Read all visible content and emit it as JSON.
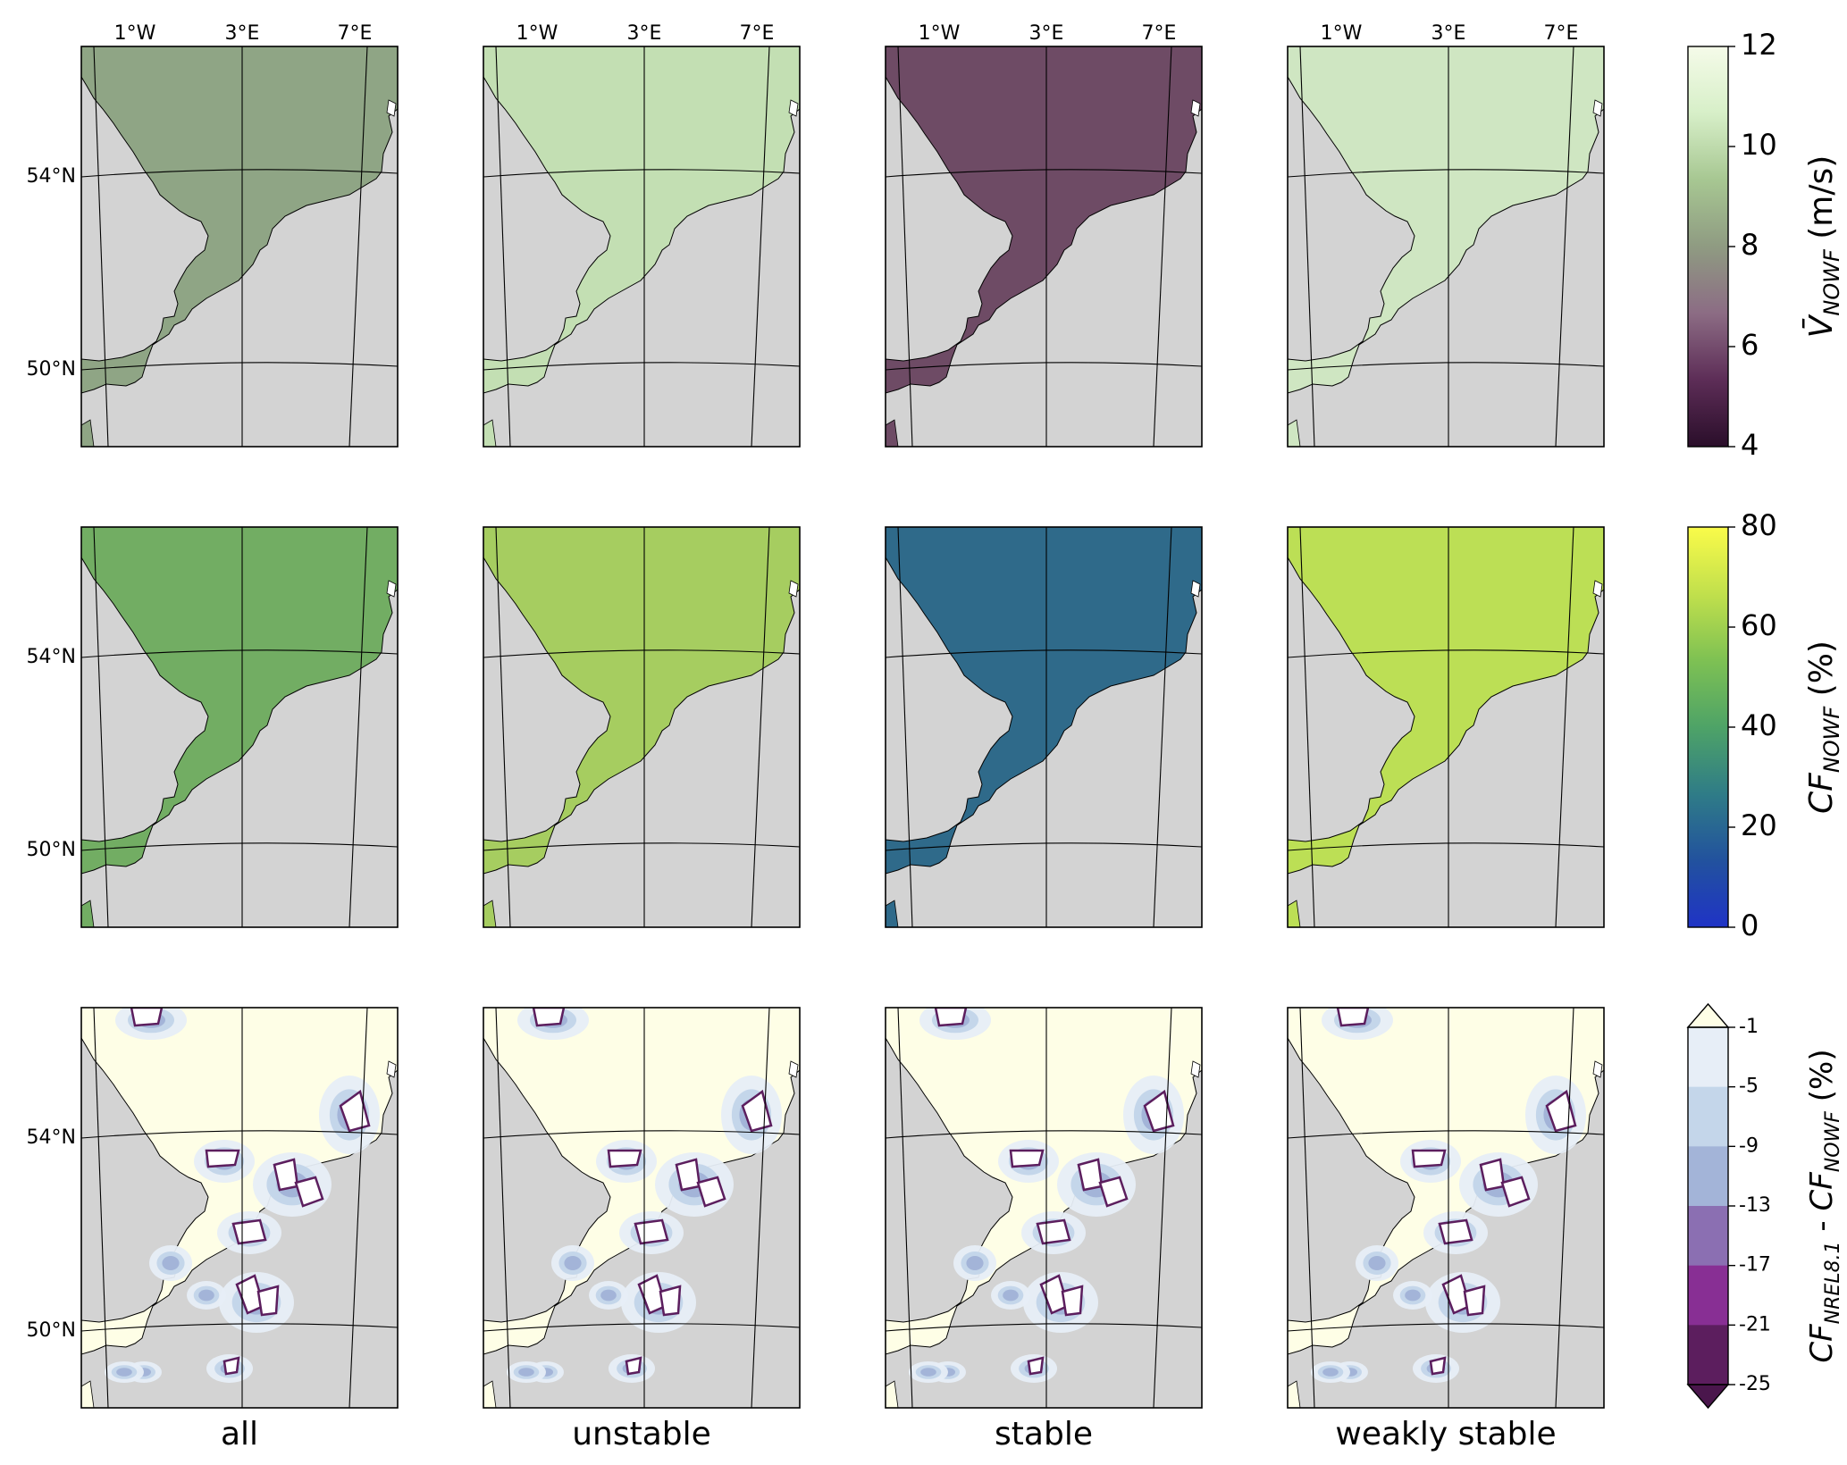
{
  "figure": {
    "columns": [
      {
        "label": "all",
        "lon_ticks": [
          "1°W",
          "3°E",
          "7°E"
        ]
      },
      {
        "label": "unstable",
        "lon_ticks": [
          "1°W",
          "3°E",
          "7°E"
        ]
      },
      {
        "label": "stable",
        "lon_ticks": [
          "1°W",
          "3°E",
          "7°E"
        ]
      },
      {
        "label": "weakly stable",
        "lon_ticks": [
          "1°W",
          "3°E",
          "7°E"
        ]
      }
    ],
    "rows": [
      {
        "lat_ticks": [
          "54°N",
          "50°N"
        ],
        "field": "wind_speed"
      },
      {
        "lat_ticks": [
          "54°N",
          "50°N"
        ],
        "field": "capacity_factor"
      },
      {
        "lat_ticks": [
          "54°N",
          "50°N"
        ],
        "field": "cf_difference"
      }
    ],
    "colors": {
      "land": "#d3d3d3",
      "frame": "#000000",
      "gridline": "#000000",
      "coast": "#000000"
    },
    "sea_fill": [
      [
        "#8fa585",
        "#c3dfb3",
        "#6e4b65",
        "#cfe6c2"
      ],
      [
        "#72ad63",
        "#a6cd60",
        "#2f6a8a",
        "#bcdf55"
      ],
      [
        "#fefee6",
        "#fefee6",
        "#fefee6",
        "#fefee6"
      ]
    ],
    "colorbars": [
      {
        "label": "V̄ NOWF (m/s)",
        "label_main": "V̄",
        "label_sub": "NOWF",
        "label_unit": " (m/s)",
        "ticks": [
          "12",
          "10",
          "8",
          "6",
          "4"
        ],
        "range": [
          4,
          12
        ],
        "colormap": "PRGn-like",
        "stops": [
          "#2a0e2a",
          "#5d2d57",
          "#8c6c84",
          "#8f9b82",
          "#a7c792",
          "#d7efc8",
          "#f5fbe9"
        ]
      },
      {
        "label": "CF NOWF (%)",
        "label_main": "CF",
        "label_sub": "NOWF",
        "label_unit": " (%)",
        "ticks": [
          "80",
          "60",
          "40",
          "20",
          "0"
        ],
        "range": [
          0,
          80
        ],
        "colormap": "viridis-like",
        "stops": [
          "#1f33c6",
          "#22529e",
          "#2f7c87",
          "#4ea367",
          "#7ec153",
          "#c1e04c",
          "#fafb4a"
        ]
      },
      {
        "label": "CF NREL8.1 - CF NOWF (%)",
        "label_main_a": "CF",
        "label_sub_a": "NREL8.1",
        "label_mid": " - ",
        "label_main_b": "CF",
        "label_sub_b": "NOWF",
        "label_unit": " (%)",
        "ticks": [
          "-1",
          "-5",
          "-9",
          "-13",
          "-17",
          "-21",
          "-25"
        ],
        "levels": [
          "#e7eef7",
          "#c4d6ea",
          "#a3b4d8",
          "#8b6fb2",
          "#882f94",
          "#5c1e5e"
        ],
        "extend_top": "#fefee6",
        "extend_bottom": "#4a164c"
      }
    ]
  }
}
